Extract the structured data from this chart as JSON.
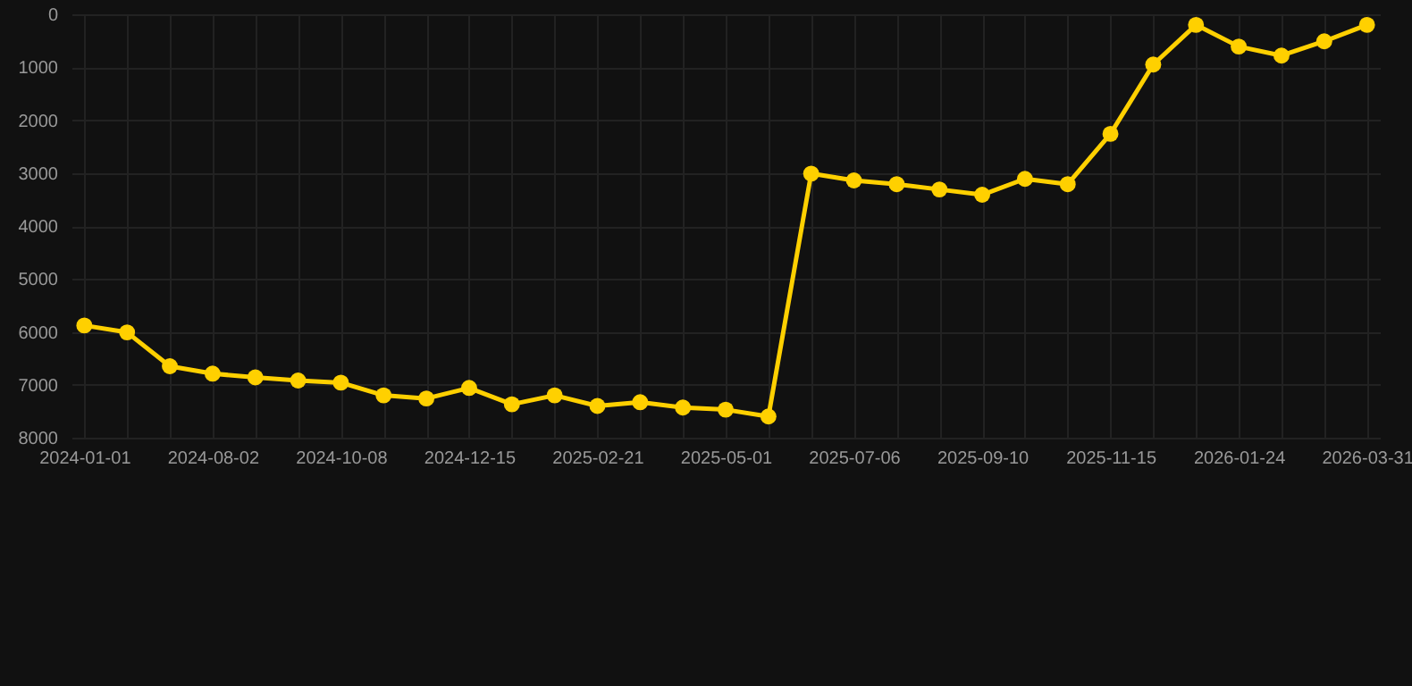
{
  "chart_data": {
    "type": "line",
    "categories": [
      "2024-01-01",
      null,
      null,
      "2024-08-02",
      null,
      null,
      "2024-10-08",
      null,
      null,
      "2024-12-15",
      null,
      null,
      "2025-02-21",
      null,
      null,
      "2025-05-01",
      null,
      null,
      "2025-07-06",
      null,
      null,
      "2025-09-10",
      null,
      null,
      "2025-11-15",
      null,
      null,
      "2026-01-24",
      null,
      null,
      "2026-03-31"
    ],
    "series": [
      {
        "color": "#ffd000",
        "values": [
          5880,
          6010,
          6650,
          6790,
          6860,
          6920,
          6960,
          7200,
          7260,
          7060,
          7370,
          7200,
          7400,
          7330,
          7430,
          7470,
          7600,
          3010,
          3140,
          3210,
          3310,
          3410,
          3110,
          3210,
          2260,
          950,
          200,
          610,
          780,
          510,
          200
        ]
      }
    ],
    "ylim": [
      8000,
      0
    ],
    "yticks": [
      0,
      1000,
      2000,
      3000,
      4000,
      5000,
      6000,
      7000,
      8000
    ],
    "grid": true,
    "marker": "circle",
    "line_style": "solid"
  }
}
